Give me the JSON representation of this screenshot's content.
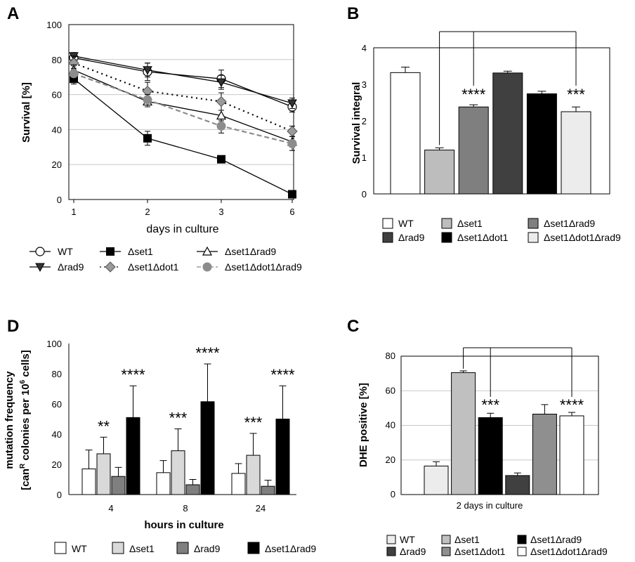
{
  "panels": {
    "A": {
      "letter": "A",
      "chart_data": {
        "type": "line",
        "x": [
          1,
          2,
          3,
          6
        ],
        "xticks": [
          "1",
          "2",
          "3",
          "6"
        ],
        "xlabel": "days in culture",
        "ylabel": "Survival [%]",
        "ylim": [
          0,
          100
        ],
        "yticks": [
          0,
          20,
          40,
          60,
          80,
          100
        ],
        "grid": true,
        "legend_placement": "bottom",
        "series": [
          {
            "name": "WT",
            "values": [
              81,
              73,
              69,
              53
            ],
            "err": [
              3,
              5,
              5,
              3
            ],
            "marker": "circle-open",
            "line": "solid",
            "color": "#000000"
          },
          {
            "name": "Δrad9",
            "values": [
              82,
              74,
              67,
              55
            ],
            "err": [
              2,
              4,
              4,
              3
            ],
            "marker": "triangle-down",
            "line": "solid",
            "color": "#000000"
          },
          {
            "name": "Δset1",
            "values": [
              69,
              35,
              23,
              3
            ],
            "err": [
              3,
              4,
              2,
              2
            ],
            "marker": "square",
            "line": "solid",
            "color": "#000000"
          },
          {
            "name": "Δset1Δdot1",
            "values": [
              78,
              62,
              56,
              39
            ],
            "err": [
              4,
              5,
              5,
              3
            ],
            "marker": "diamond",
            "line": "dotted",
            "color": "#000000"
          },
          {
            "name": "Δset1Δrad9",
            "values": [
              74,
              56,
              48,
              33
            ],
            "err": [
              3,
              3,
              3,
              3
            ],
            "marker": "triangle-open",
            "line": "solid",
            "color": "#000000"
          },
          {
            "name": "Δset1Δdot1Δrad9",
            "values": [
              72,
              57,
              42,
              32
            ],
            "err": [
              3,
              3,
              4,
              4
            ],
            "marker": "circle-gray",
            "line": "dashed",
            "color": "#8c8c8c"
          }
        ]
      }
    },
    "B": {
      "letter": "B",
      "chart_data": {
        "type": "bar",
        "ylabel": "Survival integral",
        "ylim": [
          0,
          4
        ],
        "yticks": [
          0,
          1,
          2,
          3,
          4
        ],
        "categories": [
          "WT",
          "Δset1",
          "Δset1Δrad9",
          "Δrad9",
          "Δset1Δdot1",
          "Δset1Δdot1Δrad9"
        ],
        "values": [
          3.32,
          1.2,
          2.38,
          3.31,
          2.74,
          2.25
        ],
        "err": [
          0.15,
          0.06,
          0.06,
          0.05,
          0.07,
          0.13
        ],
        "colors": [
          "#ffffff",
          "#bdbdbd",
          "#7f7f7f",
          "#404040",
          "#000000",
          "#ececec"
        ],
        "significance": [
          {
            "bar": 2,
            "label": "****"
          },
          {
            "bar": 5,
            "label": "***"
          }
        ],
        "legend_placement": "bottom",
        "legend": [
          {
            "name": "WT",
            "color": "#ffffff"
          },
          {
            "name": "Δset1",
            "color": "#bdbdbd"
          },
          {
            "name": "Δset1Δrad9",
            "color": "#7f7f7f"
          },
          {
            "name": "Δrad9",
            "color": "#404040"
          },
          {
            "name": "Δset1Δdot1",
            "color": "#000000"
          },
          {
            "name": "Δset1Δdot1Δrad9",
            "color": "#ececec"
          }
        ]
      }
    },
    "D": {
      "letter": "D",
      "chart_data": {
        "type": "bar",
        "ylabel_line1": "mutation frequency",
        "ylabel_line2_a": "[can",
        "ylabel_line2_sup1": "R",
        "ylabel_line2_b": " colonies per 10",
        "ylabel_line2_sup2": "6",
        "ylabel_line2_c": " cells]",
        "xlabel": "hours in culture",
        "ylim": [
          0,
          100
        ],
        "yticks": [
          0,
          20,
          40,
          60,
          80,
          100
        ],
        "categories": [
          "4",
          "8",
          "24"
        ],
        "series": [
          {
            "name": "WT",
            "values": [
              17,
              14.5,
              14
            ],
            "err": [
              12.5,
              8,
              6.5
            ],
            "color": "#ffffff"
          },
          {
            "name": "Δset1",
            "values": [
              27,
              29,
              26
            ],
            "err": [
              11,
              14.5,
              14.5
            ],
            "color": "#d9d9d9"
          },
          {
            "name": "Δrad9",
            "values": [
              12,
              6.5,
              5.5
            ],
            "err": [
              6,
              3.5,
              4
            ],
            "color": "#7f7f7f"
          },
          {
            "name": "Δset1Δrad9",
            "values": [
              51,
              61.5,
              50
            ],
            "err": [
              21,
              25,
              22
            ],
            "color": "#000000"
          }
        ],
        "significance": [
          {
            "group": 0,
            "series": 1,
            "label": "**"
          },
          {
            "group": 0,
            "series": 3,
            "label": "****"
          },
          {
            "group": 1,
            "series": 1,
            "label": "***"
          },
          {
            "group": 1,
            "series": 3,
            "label": "****"
          },
          {
            "group": 2,
            "series": 1,
            "label": "***"
          },
          {
            "group": 2,
            "series": 3,
            "label": "****"
          }
        ],
        "legend_placement": "bottom"
      }
    },
    "C": {
      "letter": "C",
      "chart_data": {
        "type": "bar",
        "ylabel": "DHE positive [%]",
        "xlabel": "2 days in culture",
        "ylim": [
          0,
          80
        ],
        "yticks": [
          0,
          20,
          40,
          60,
          80
        ],
        "grid": true,
        "categories": [
          "WT",
          "Δset1",
          "Δset1Δrad9",
          "Δrad9",
          "Δset1Δdot1",
          "Δset1Δdot1Δrad9"
        ],
        "values": [
          16.5,
          70.5,
          44.5,
          11,
          46.5,
          45.5
        ],
        "err": [
          2.5,
          1,
          2.5,
          1.5,
          5.5,
          2
        ],
        "colors": [
          "#ececec",
          "#c0c0c0",
          "#000000",
          "#404040",
          "#8f8f8f",
          "#ffffff"
        ],
        "significance": [
          {
            "bar": 2,
            "label": "***"
          },
          {
            "bar": 5,
            "label": "****"
          }
        ],
        "legend_placement": "bottom",
        "legend": [
          {
            "name": "WT",
            "color": "#ececec"
          },
          {
            "name": "Δset1",
            "color": "#c0c0c0"
          },
          {
            "name": "Δset1Δrad9",
            "color": "#000000"
          },
          {
            "name": "Δrad9",
            "color": "#404040"
          },
          {
            "name": "Δset1Δdot1",
            "color": "#8f8f8f"
          },
          {
            "name": "Δset1Δdot1Δrad9",
            "color": "#ffffff"
          }
        ]
      }
    }
  }
}
